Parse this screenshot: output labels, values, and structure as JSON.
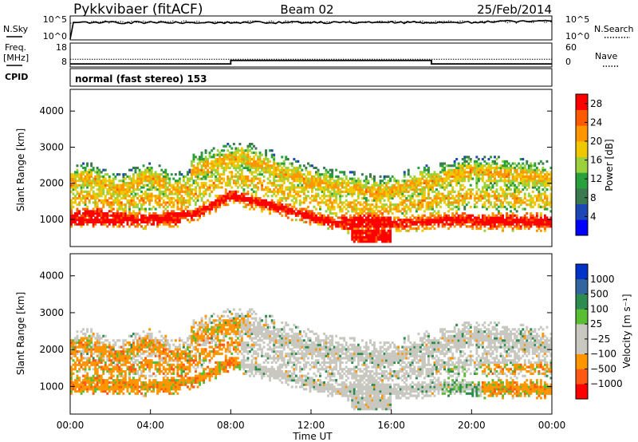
{
  "header": {
    "station": "Pykkvibaer (fitACF)",
    "beam": "Beam 02",
    "date": "25/Feb/2014"
  },
  "strip_labels": {
    "nsky": "N.Sky",
    "freq_line1": "Freq.",
    "freq_line2": "[MHz]",
    "cpid": "CPID",
    "nsearch": "N.Search",
    "nave": "Nave",
    "nsky_top": "10^5",
    "nsky_bottom": "10^0",
    "nsearch_top": "10^5",
    "nsearch_bottom": "10^0",
    "freq_top": "18",
    "freq_bottom": "8",
    "nave_top": "60",
    "nave_bottom": "0",
    "cpid_text": "normal (fast stereo) 153"
  },
  "colors": {
    "power": [
      "#0000ff",
      "#1e46b4",
      "#3c7850",
      "#28a03c",
      "#9bd23c",
      "#f0c800",
      "#ff9600",
      "#ff5a00",
      "#ff0000"
    ],
    "velocity": [
      "#ff0000",
      "#ff5a14",
      "#ff9600",
      "#c8c8c0",
      "#c8c8c0",
      "#5abe32",
      "#2d8c50",
      "#3264a0",
      "#0032c8"
    ]
  },
  "chart_data": [
    {
      "type": "heatmap",
      "name": "power",
      "ylabel": "Slant Range [km]",
      "yticks": [
        "1000",
        "2000",
        "3000",
        "4000"
      ],
      "ylim": [
        250,
        4600
      ],
      "xlim": [
        0,
        24
      ],
      "colorbar_label": "Power [dB]",
      "colorbar_ticks": [
        "4",
        "8",
        "12",
        "16",
        "20",
        "24",
        "28"
      ],
      "colorbar_range": [
        0,
        30
      ]
    },
    {
      "type": "heatmap",
      "name": "velocity",
      "xlabel": "Time UT",
      "ylabel": "Slant Range [km]",
      "yticks": [
        "1000",
        "2000",
        "3000",
        "4000"
      ],
      "xticks": [
        "00:00",
        "04:00",
        "08:00",
        "12:00",
        "16:00",
        "20:00",
        "00:00"
      ],
      "ylim": [
        250,
        4600
      ],
      "xlim": [
        0,
        24
      ],
      "colorbar_label": "Velocity [m s⁻¹]",
      "colorbar_ticks": [
        "1000",
        "500",
        "100",
        "25",
        "−25",
        "−100",
        "−500",
        "−1000"
      ]
    }
  ]
}
